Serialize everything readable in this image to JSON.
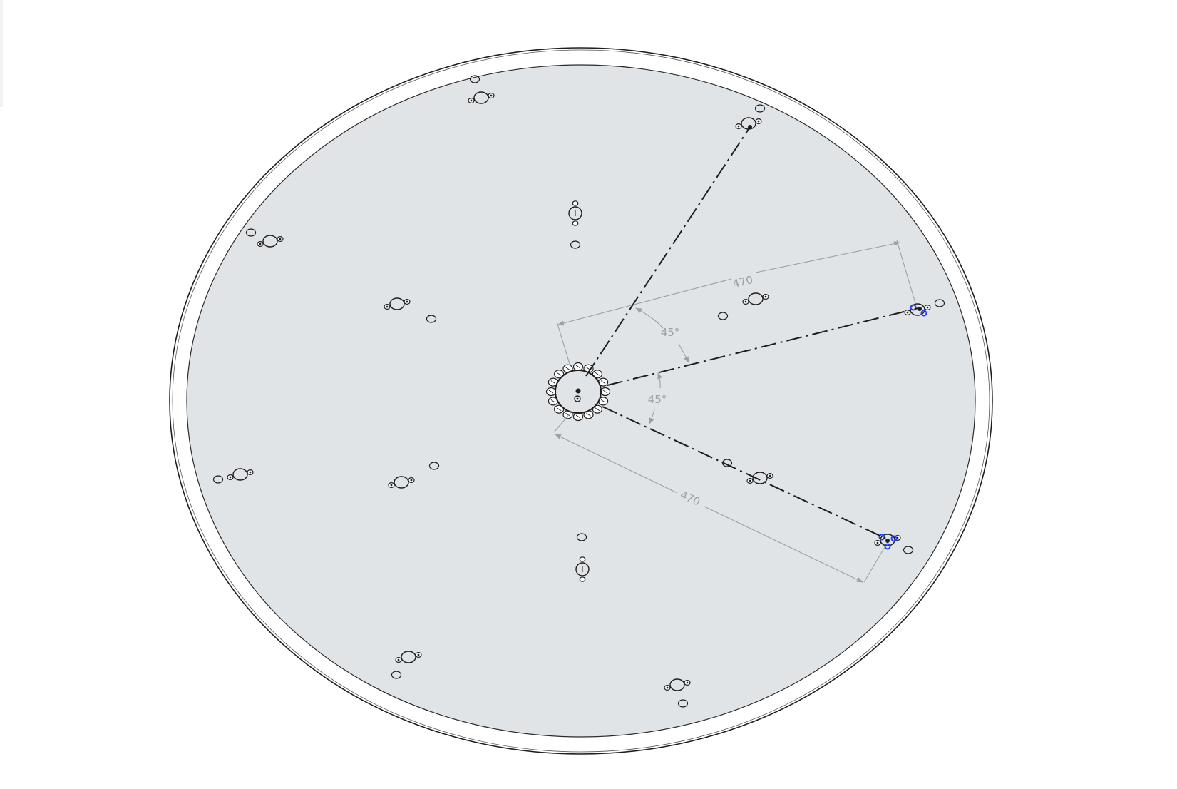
{
  "cad_view": {
    "colors": {
      "background": "#ffffff",
      "plate_face": "#e1e4e7",
      "edge": "#1e1e1e",
      "dimension": "#9aa0a8",
      "selection": "#1f3fff"
    },
    "dimensions": {
      "upper_length": "470",
      "lower_length": "470",
      "upper_angle": "45°",
      "lower_angle": "45°"
    }
  }
}
